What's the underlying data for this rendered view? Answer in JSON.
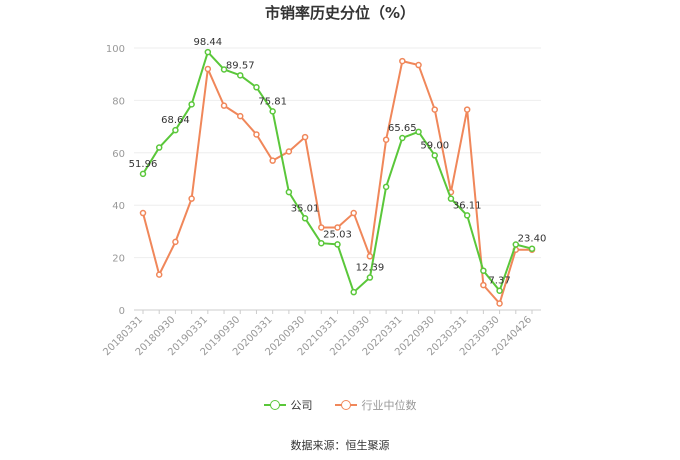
{
  "title": "市销率历史分位（%）",
  "source": "数据来源：恒生聚源",
  "chart_data": {
    "type": "line",
    "ylim": [
      0,
      100
    ],
    "yticks": [
      0,
      20,
      40,
      60,
      80,
      100
    ],
    "x": [
      "20180331",
      "20180630",
      "20180930",
      "20181231",
      "20190331",
      "20190630",
      "20190930",
      "20191231",
      "20200331",
      "20200630",
      "20200930",
      "20201231",
      "20210331",
      "20210630",
      "20210930",
      "20211231",
      "20220331",
      "20220630",
      "20220930",
      "20221231",
      "20230331",
      "20230630",
      "20230930",
      "20231231",
      "20240426"
    ],
    "xtick_labels": [
      "20180331",
      "20180930",
      "20190331",
      "20190930",
      "20200331",
      "20200930",
      "20210331",
      "20210930",
      "20220331",
      "20220930",
      "20230331",
      "20230930",
      "20240426"
    ],
    "series": [
      {
        "name": "公司",
        "color": "#5ac73a",
        "values": [
          51.96,
          62.0,
          68.64,
          78.5,
          98.44,
          91.8,
          89.57,
          85.0,
          75.81,
          45.0,
          35.01,
          25.5,
          25.03,
          6.8,
          12.39,
          47.0,
          65.65,
          68.0,
          59.0,
          42.5,
          36.11,
          15.0,
          7.37,
          25.0,
          23.4
        ],
        "labels": {
          "0": "51.96",
          "2": "68.64",
          "4": "98.44",
          "6": "89.57",
          "8": "75.81",
          "10": "35.01",
          "12": "25.03",
          "14": "12.39",
          "16": "65.65",
          "18": "59.00",
          "20": "36.11",
          "22": "7.37",
          "24": "23.40"
        }
      },
      {
        "name": "行业中位数",
        "color": "#f0875a",
        "values": [
          37.0,
          13.5,
          26.0,
          42.5,
          92.0,
          78.0,
          74.0,
          67.0,
          57.0,
          60.5,
          66.0,
          31.5,
          31.5,
          37.0,
          20.5,
          65.0,
          95.0,
          93.5,
          76.5,
          45.0,
          76.5,
          9.5,
          2.5,
          23.0,
          23.0
        ]
      }
    ]
  }
}
